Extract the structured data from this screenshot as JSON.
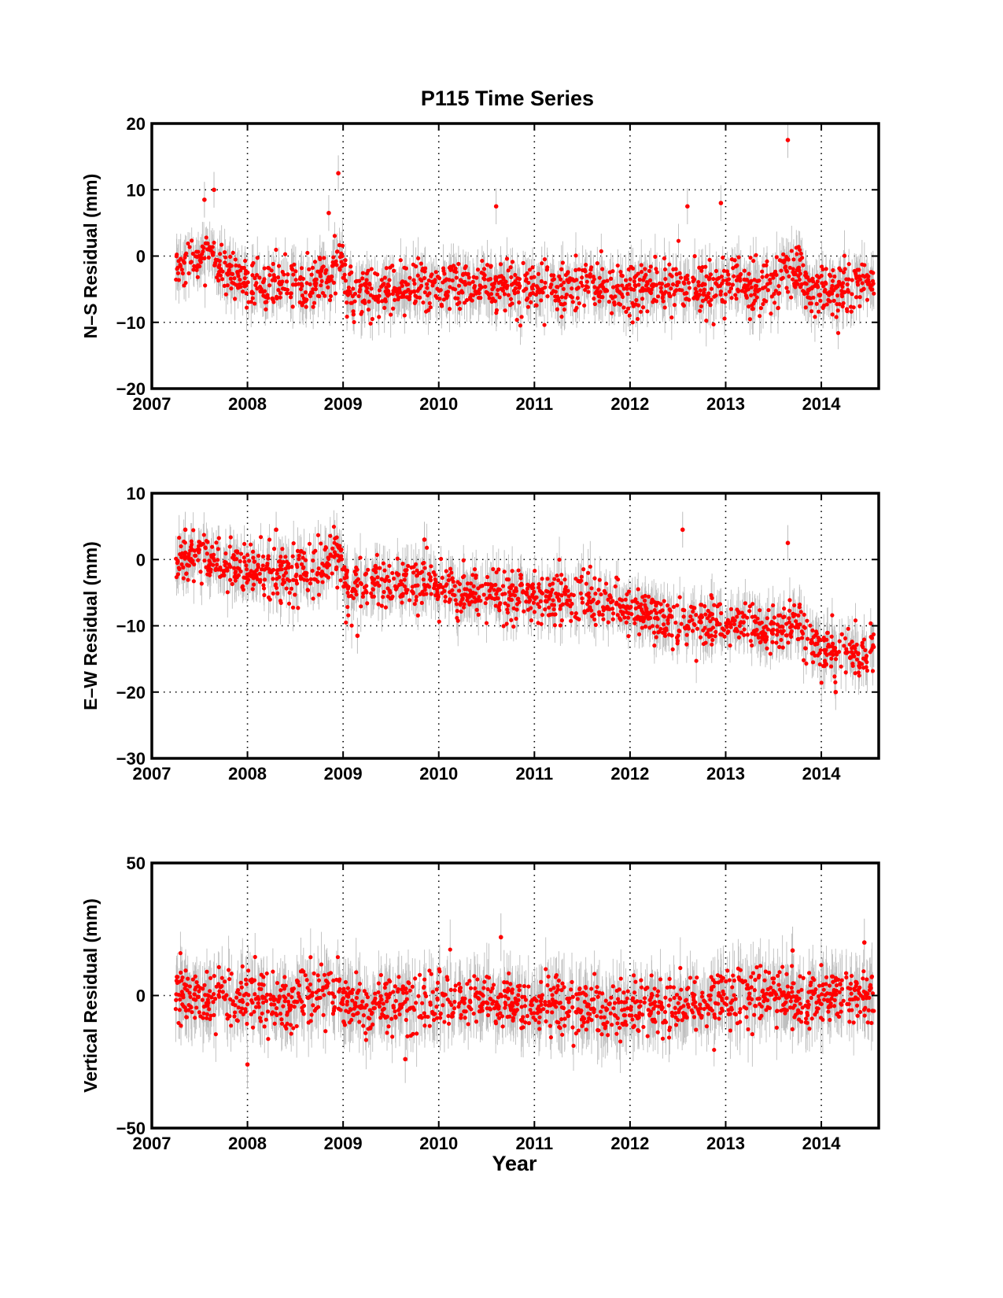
{
  "figure": {
    "title": "P115 Time Series",
    "xlabel": "Year"
  },
  "colors": {
    "point": "#ff0000",
    "errorbar": "#bdbdbd",
    "axes": "#000000",
    "grid": "#000000",
    "background": "#ffffff"
  },
  "chart_data": [
    {
      "type": "scatter",
      "title": "P115 Time Series",
      "xlabel": "",
      "ylabel": "N–S Residual (mm)",
      "xlim": [
        2007,
        2014.6
      ],
      "ylim": [
        -20,
        20
      ],
      "xticks": [
        2007,
        2008,
        2009,
        2010,
        2011,
        2012,
        2013,
        2014
      ],
      "yticks": [
        -20,
        -10,
        0,
        10,
        20
      ],
      "ytick_labels": [
        "−20",
        "−10",
        "0",
        "10",
        "20"
      ],
      "grid": "dotted",
      "error_bars": true,
      "sampling": "daily",
      "series": [
        {
          "x": [
            2007.25,
            2007.4,
            2007.6,
            2007.8,
            2008.0,
            2008.3,
            2008.6,
            2008.85,
            2008.98,
            2009.05,
            2009.3,
            2009.6,
            2010.0,
            2010.3,
            2010.6,
            2010.9,
            2011.2,
            2011.5,
            2011.8,
            2012.1,
            2012.4,
            2012.7,
            2013.0,
            2013.3,
            2013.55,
            2013.7,
            2013.85,
            2014.0,
            2014.3,
            2014.55
          ],
          "y": [
            -2,
            -1.5,
            0.5,
            -2.5,
            -4,
            -4.5,
            -4.5,
            -3,
            0,
            -5.5,
            -5,
            -4.5,
            -4.5,
            -4.5,
            -4,
            -4.5,
            -5,
            -4.5,
            -4.5,
            -5,
            -4.5,
            -4.5,
            -4.5,
            -4.5,
            -4,
            -1.5,
            -4.5,
            -5,
            -4.5,
            -4.5
          ]
        }
      ],
      "outliers": [
        {
          "x": 2007.55,
          "y": 8.5
        },
        {
          "x": 2007.65,
          "y": 10
        },
        {
          "x": 2008.95,
          "y": 12.5
        },
        {
          "x": 2008.85,
          "y": 6.5
        },
        {
          "x": 2010.6,
          "y": 7.5
        },
        {
          "x": 2012.6,
          "y": 7.5
        },
        {
          "x": 2012.95,
          "y": 8
        },
        {
          "x": 2013.65,
          "y": 17.5
        }
      ]
    },
    {
      "type": "scatter",
      "title": "",
      "xlabel": "",
      "ylabel": "E–W Residual (mm)",
      "xlim": [
        2007,
        2014.6
      ],
      "ylim": [
        -30,
        10
      ],
      "xticks": [
        2007,
        2008,
        2009,
        2010,
        2011,
        2012,
        2013,
        2014
      ],
      "yticks": [
        -30,
        -20,
        -10,
        0,
        10
      ],
      "ytick_labels": [
        "−30",
        "−20",
        "−10",
        "0",
        "10"
      ],
      "grid": "dotted",
      "error_bars": true,
      "sampling": "daily",
      "series": [
        {
          "x": [
            2007.25,
            2007.5,
            2007.75,
            2008.0,
            2008.3,
            2008.6,
            2008.8,
            2008.9,
            2009.05,
            2009.3,
            2009.5,
            2009.8,
            2010.0,
            2010.3,
            2010.6,
            2010.9,
            2011.2,
            2011.5,
            2011.8,
            2012.1,
            2012.4,
            2012.7,
            2013.0,
            2013.3,
            2013.55,
            2013.7,
            2013.85,
            2014.0,
            2014.2,
            2014.55
          ],
          "y": [
            0,
            0.5,
            -0.5,
            -1.5,
            -2,
            -2,
            -1.5,
            2,
            -4,
            -4,
            -3,
            -4,
            -4.5,
            -5,
            -5,
            -5.5,
            -5.5,
            -6,
            -6.5,
            -8,
            -9,
            -9.5,
            -10,
            -10.5,
            -11,
            -9,
            -11.5,
            -13,
            -14,
            -14
          ]
        }
      ],
      "outliers": [
        {
          "x": 2007.35,
          "y": 4.5
        },
        {
          "x": 2008.3,
          "y": 4.5
        },
        {
          "x": 2009.85,
          "y": 3
        },
        {
          "x": 2012.55,
          "y": 4.5
        },
        {
          "x": 2013.65,
          "y": 2.5
        },
        {
          "x": 2009.15,
          "y": -11.5
        },
        {
          "x": 2014.15,
          "y": -20
        }
      ]
    },
    {
      "type": "scatter",
      "title": "",
      "xlabel": "Year",
      "ylabel": "Vertical Residual (mm)",
      "xlim": [
        2007,
        2014.6
      ],
      "ylim": [
        -50,
        50
      ],
      "xticks": [
        2007,
        2008,
        2009,
        2010,
        2011,
        2012,
        2013,
        2014
      ],
      "yticks": [
        -50,
        0,
        50
      ],
      "ytick_labels": [
        "−50",
        "0",
        "50"
      ],
      "grid": "dotted",
      "error_bars": true,
      "sampling": "daily",
      "series": [
        {
          "x": [
            2007.25,
            2007.5,
            2007.75,
            2008.0,
            2008.3,
            2008.6,
            2008.85,
            2009.05,
            2009.3,
            2009.6,
            2009.9,
            2010.2,
            2010.5,
            2010.8,
            2011.1,
            2011.4,
            2011.7,
            2012.0,
            2012.3,
            2012.6,
            2012.9,
            2013.2,
            2013.5,
            2013.8,
            2014.1,
            2014.4,
            2014.55
          ],
          "y": [
            -1,
            -1,
            0,
            -1,
            -3,
            -1,
            2,
            -3,
            -4,
            -3,
            -4,
            -2,
            -1,
            -3,
            -3,
            -3,
            -6,
            -6,
            -4,
            -3,
            -2,
            0,
            1,
            -1,
            0,
            1,
            0
          ]
        }
      ],
      "outliers": [
        {
          "x": 2008.0,
          "y": -26
        },
        {
          "x": 2010.65,
          "y": 22
        },
        {
          "x": 2014.45,
          "y": 20
        },
        {
          "x": 2009.65,
          "y": -24
        },
        {
          "x": 2013.7,
          "y": 17
        }
      ]
    }
  ]
}
